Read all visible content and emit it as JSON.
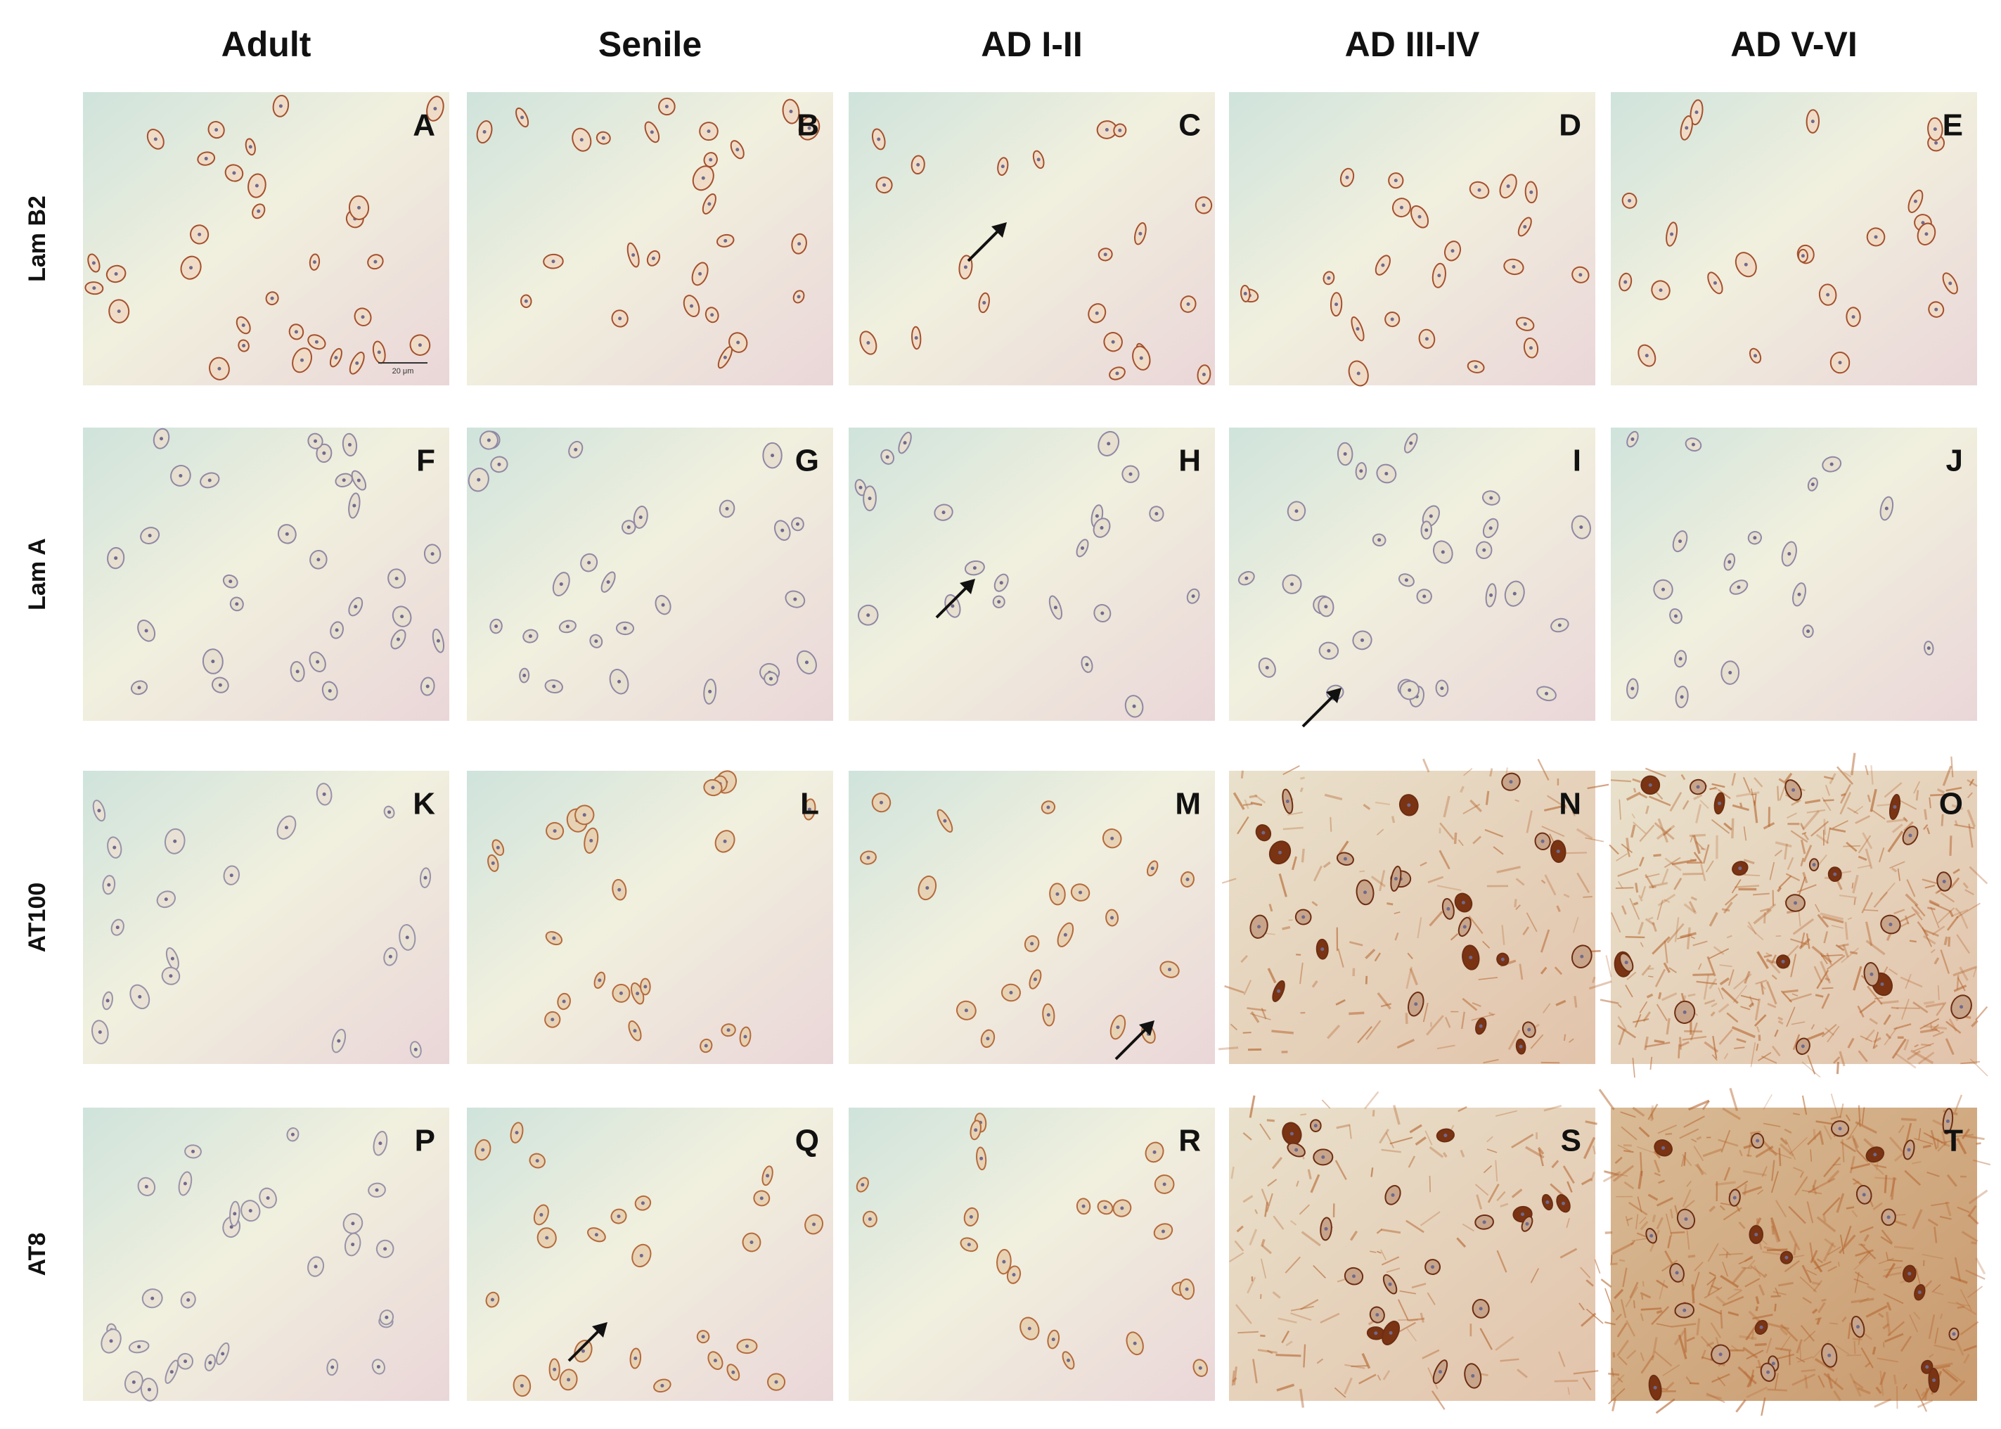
{
  "columns": [
    "Adult",
    "Senile",
    "AD I-II",
    "AD III-IV",
    "AD V-VI"
  ],
  "rows": [
    "Lam B2",
    "Lam A",
    "AT100",
    "AT8"
  ],
  "panels": [
    [
      "A",
      "B",
      "C",
      "D",
      "E"
    ],
    [
      "F",
      "G",
      "H",
      "I",
      "J"
    ],
    [
      "K",
      "L",
      "M",
      "N",
      "O"
    ],
    [
      "P",
      "Q",
      "R",
      "S",
      "T"
    ]
  ],
  "scale_bar": "20 μm"
}
